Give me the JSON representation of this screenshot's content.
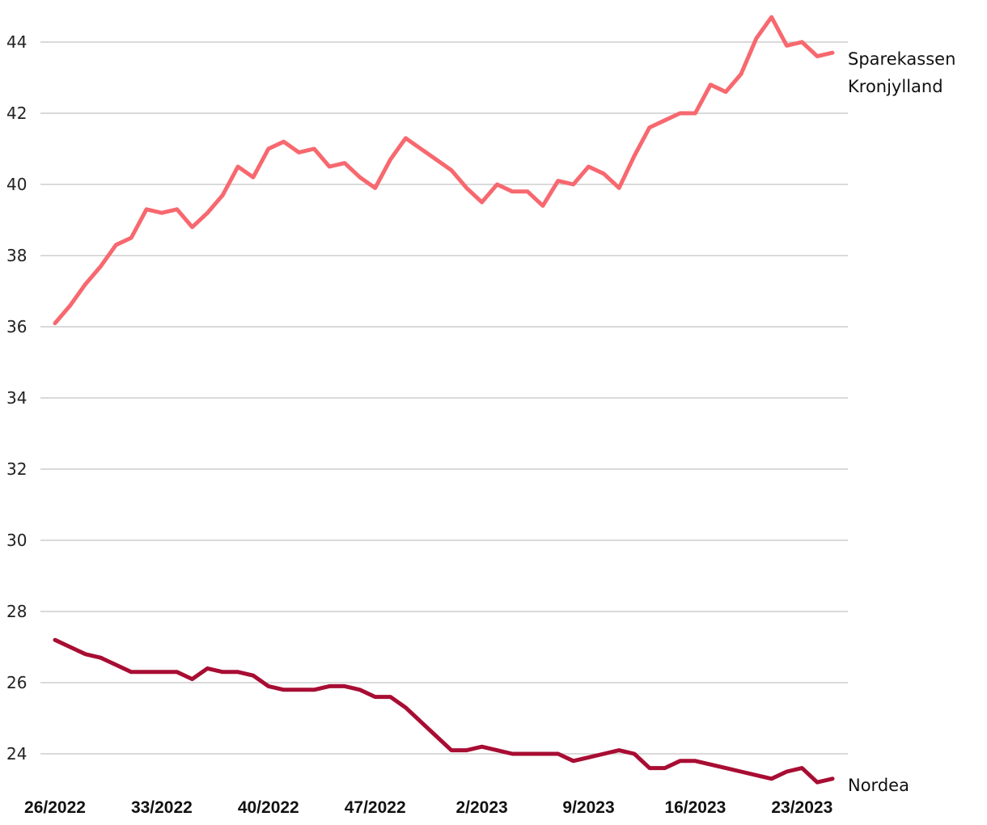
{
  "chart_data": {
    "type": "line",
    "title": "",
    "xlabel": "",
    "ylabel": "",
    "ylim": [
      23,
      45
    ],
    "yticks": [
      24,
      26,
      28,
      30,
      32,
      34,
      36,
      38,
      40,
      42,
      44
    ],
    "grid": true,
    "legend": "labels at line ends (right)",
    "x_tick_labels": [
      "26/2022",
      "33/2022",
      "40/2022",
      "47/2022",
      "2/2023",
      "9/2023",
      "16/2023",
      "23/2023"
    ],
    "x_tick_index": [
      0,
      7,
      14,
      21,
      28,
      35,
      42,
      49
    ],
    "point_count": 52,
    "series": [
      {
        "name": "Sparekassen Kronjylland",
        "label_lines": [
          "Sparekassen",
          "Kronjylland"
        ],
        "color": "#f7686f",
        "values": [
          36.1,
          36.6,
          37.2,
          37.7,
          38.3,
          38.5,
          39.3,
          39.2,
          39.3,
          38.8,
          39.2,
          39.7,
          40.5,
          40.2,
          41.0,
          41.2,
          40.9,
          41.0,
          40.5,
          40.6,
          40.2,
          39.9,
          40.7,
          41.3,
          41.0,
          40.7,
          40.4,
          39.9,
          39.5,
          40.0,
          39.8,
          39.8,
          39.4,
          40.1,
          40.0,
          40.5,
          40.3,
          39.9,
          40.8,
          41.6,
          41.8,
          42.0,
          42.0,
          42.8,
          42.6,
          43.1,
          44.1,
          44.7,
          43.9,
          44.0,
          43.6,
          43.7
        ]
      },
      {
        "name": "Nordea",
        "label_lines": [
          "Nordea"
        ],
        "color": "#a80d33",
        "values": [
          27.2,
          27.0,
          26.8,
          26.7,
          26.5,
          26.3,
          26.3,
          26.3,
          26.3,
          26.1,
          26.4,
          26.3,
          26.3,
          26.2,
          25.9,
          25.8,
          25.8,
          25.8,
          25.9,
          25.9,
          25.8,
          25.6,
          25.6,
          25.3,
          24.9,
          24.5,
          24.1,
          24.1,
          24.2,
          24.1,
          24.0,
          24.0,
          24.0,
          24.0,
          23.8,
          23.9,
          24.0,
          24.1,
          24.0,
          23.6,
          23.6,
          23.8,
          23.8,
          23.7,
          23.6,
          23.5,
          23.4,
          23.3,
          23.5,
          23.6,
          23.2,
          23.3
        ]
      }
    ]
  }
}
